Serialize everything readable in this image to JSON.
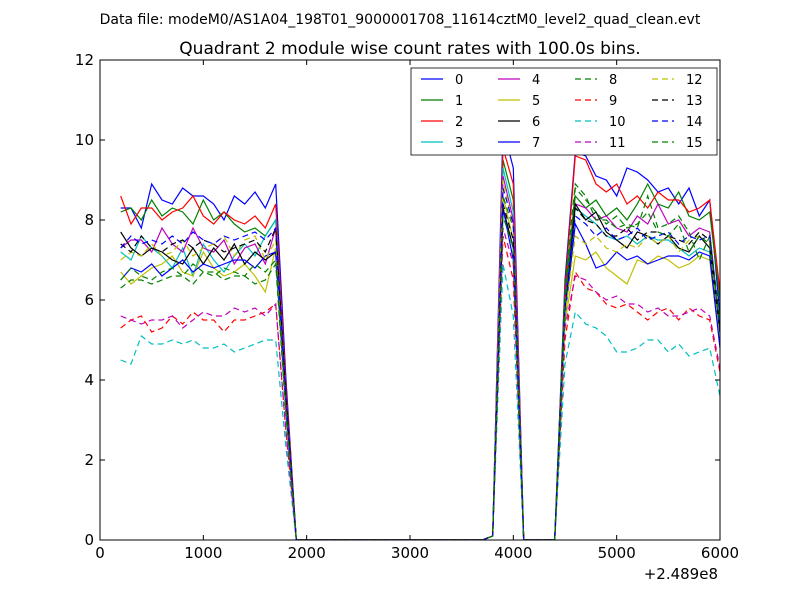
{
  "header": {
    "suptitle": "Data file: modeM0/AS1A04_198T01_9000001708_11614cztM0_level2_quad_clean.evt"
  },
  "chart_data": {
    "type": "line",
    "title": "Quadrant 2 module wise count rates with 100.0s bins.",
    "xlabel": "",
    "ylabel": "",
    "x_offset_label": "+2.489e8",
    "xlim": [
      0,
      6000
    ],
    "ylim": [
      0,
      12
    ],
    "xticks": [
      0,
      1000,
      2000,
      3000,
      4000,
      5000,
      6000
    ],
    "yticks": [
      0,
      2,
      4,
      6,
      8,
      10,
      12
    ],
    "grid": false,
    "legend_position": "top-right",
    "legend_columns": 4,
    "x": [
      200,
      300,
      400,
      500,
      600,
      700,
      800,
      900,
      1000,
      1100,
      1200,
      1300,
      1400,
      1500,
      1600,
      1700,
      1800,
      1900,
      2000,
      2100,
      2200,
      2300,
      2400,
      2500,
      2600,
      2700,
      2800,
      2900,
      3000,
      3100,
      3200,
      3300,
      3400,
      3500,
      3600,
      3700,
      3800,
      3900,
      4000,
      4100,
      4200,
      4300,
      4400,
      4500,
      4600,
      4700,
      4800,
      4900,
      5000,
      5100,
      5200,
      5300,
      5400,
      5500,
      5600,
      5700,
      5800,
      5900,
      6000
    ],
    "series": [
      {
        "name": "0",
        "color": "#0000ff",
        "dash": "solid",
        "values": [
          8.3,
          8.3,
          7.8,
          8.9,
          8.5,
          8.4,
          8.8,
          8.6,
          8.6,
          8.4,
          8.0,
          8.6,
          8.4,
          8.7,
          8.3,
          8.9,
          4.0,
          0,
          0,
          0,
          0,
          0,
          0,
          0,
          0,
          0,
          0,
          0,
          0,
          0,
          0,
          0,
          0,
          0,
          0,
          0,
          0.1,
          10.3,
          9.3,
          0,
          0,
          0,
          0,
          6.5,
          9.7,
          9.6,
          9.1,
          9.0,
          8.6,
          9.3,
          9.2,
          9.0,
          8.7,
          8.8,
          8.4,
          8.8,
          8.1,
          8.5,
          5.6
        ]
      },
      {
        "name": "1",
        "color": "#008000",
        "dash": "solid",
        "values": [
          8.2,
          8.3,
          8.0,
          8.5,
          8.1,
          8.3,
          8.2,
          7.9,
          8.5,
          8.0,
          8.2,
          7.9,
          7.7,
          7.8,
          7.6,
          8.0,
          3.7,
          0,
          0,
          0,
          0,
          0,
          0,
          0,
          0,
          0,
          0,
          0,
          0,
          0,
          0,
          0,
          0,
          0,
          0,
          0,
          0.1,
          9.5,
          8.5,
          0,
          0,
          0,
          0,
          6.2,
          8.6,
          8.3,
          8.5,
          8.1,
          8.3,
          8.0,
          8.4,
          8.9,
          8.4,
          8.3,
          8.7,
          8.1,
          8.0,
          8.2,
          6.0
        ]
      },
      {
        "name": "2",
        "color": "#ff0000",
        "dash": "solid",
        "values": [
          8.6,
          7.9,
          8.3,
          8.3,
          8.0,
          8.2,
          8.3,
          8.6,
          8.1,
          7.9,
          8.2,
          8.0,
          7.9,
          8.1,
          7.8,
          8.4,
          3.8,
          0,
          0,
          0,
          0,
          0,
          0,
          0,
          0,
          0,
          0,
          0,
          0,
          0,
          0,
          0,
          0,
          0,
          0,
          0,
          0.1,
          9.8,
          8.9,
          0,
          0,
          0,
          0,
          6.3,
          9.6,
          9.5,
          8.9,
          8.7,
          8.9,
          8.4,
          8.6,
          8.3,
          8.7,
          8.5,
          8.5,
          8.2,
          8.3,
          8.5,
          6.2
        ]
      },
      {
        "name": "3",
        "color": "#00bfbf",
        "dash": "solid",
        "values": [
          7.2,
          7.0,
          7.6,
          7.3,
          7.1,
          6.8,
          7.3,
          6.6,
          7.4,
          7.0,
          6.7,
          7.1,
          7.4,
          7.1,
          7.6,
          8.0,
          3.5,
          0,
          0,
          0,
          0,
          0,
          0,
          0,
          0,
          0,
          0,
          0,
          0,
          0,
          0,
          0,
          0,
          0,
          0,
          0,
          0.1,
          9.3,
          8.2,
          0,
          0,
          0,
          0,
          5.8,
          8.3,
          8.1,
          7.9,
          7.6,
          7.5,
          7.6,
          7.4,
          7.6,
          7.5,
          7.5,
          7.3,
          7.1,
          7.3,
          7.2,
          5.1
        ]
      },
      {
        "name": "4",
        "color": "#bf00bf",
        "dash": "solid",
        "values": [
          7.3,
          7.5,
          7.5,
          7.2,
          7.8,
          7.4,
          7.2,
          7.8,
          7.3,
          7.2,
          7.5,
          6.9,
          7.3,
          7.4,
          6.9,
          7.8,
          3.5,
          0,
          0,
          0,
          0,
          0,
          0,
          0,
          0,
          0,
          0,
          0,
          0,
          0,
          0,
          0,
          0,
          0,
          0,
          0,
          0.1,
          9.1,
          8.0,
          0,
          0,
          0,
          0,
          6.0,
          8.4,
          8.3,
          8.0,
          8.1,
          7.8,
          7.7,
          8.1,
          7.9,
          8.4,
          7.9,
          8.0,
          7.6,
          7.8,
          7.7,
          5.3
        ]
      },
      {
        "name": "5",
        "color": "#bfbf00",
        "dash": "solid",
        "values": [
          6.7,
          6.4,
          6.6,
          6.8,
          6.9,
          7.1,
          6.7,
          6.6,
          7.2,
          6.8,
          6.6,
          6.7,
          6.9,
          6.6,
          6.2,
          7.3,
          3.3,
          0,
          0,
          0,
          0,
          0,
          0,
          0,
          0,
          0,
          0,
          0,
          0,
          0,
          0,
          0,
          0,
          0,
          0,
          0,
          0.1,
          8.6,
          7.5,
          0,
          0,
          0,
          0,
          5.4,
          7.1,
          7.0,
          7.2,
          6.8,
          6.6,
          6.4,
          7.0,
          6.9,
          7.1,
          7.0,
          6.8,
          6.9,
          7.1,
          7.0,
          4.9
        ]
      },
      {
        "name": "6",
        "color": "#000000",
        "dash": "solid",
        "values": [
          7.7,
          7.3,
          7.1,
          7.3,
          7.2,
          7.0,
          6.9,
          7.3,
          6.9,
          7.3,
          7.0,
          7.4,
          6.9,
          7.2,
          7.0,
          7.2,
          3.3,
          0,
          0,
          0,
          0,
          0,
          0,
          0,
          0,
          0,
          0,
          0,
          0,
          0,
          0,
          0,
          0,
          0,
          0,
          0,
          0.1,
          8.3,
          7.3,
          0,
          0,
          0,
          0,
          5.7,
          8.4,
          8.0,
          8.2,
          7.7,
          7.5,
          7.3,
          7.7,
          7.6,
          7.4,
          7.6,
          7.3,
          7.2,
          7.6,
          7.3,
          5.2
        ]
      },
      {
        "name": "7",
        "color": "#0000ff",
        "dash": "solid",
        "values": [
          6.5,
          6.8,
          6.7,
          6.9,
          6.6,
          6.8,
          7.0,
          6.7,
          6.9,
          6.8,
          6.9,
          7.0,
          7.0,
          6.8,
          7.1,
          7.2,
          3.3,
          0,
          0,
          0,
          0,
          0,
          0,
          0,
          0,
          0,
          0,
          0,
          0,
          0,
          0,
          0,
          0,
          0,
          0,
          0,
          0.1,
          8.3,
          7.0,
          0,
          0,
          0,
          0,
          5.6,
          7.9,
          7.4,
          6.8,
          6.9,
          7.2,
          7.0,
          7.1,
          6.9,
          7.0,
          7.1,
          7.1,
          7.0,
          7.2,
          7.1,
          4.8
        ]
      },
      {
        "name": "8",
        "color": "#008000",
        "dash": "dashed",
        "values": [
          6.3,
          6.5,
          6.5,
          6.4,
          6.5,
          6.6,
          6.6,
          6.4,
          6.7,
          6.7,
          6.5,
          6.6,
          6.6,
          6.4,
          6.5,
          6.9,
          3.1,
          0,
          0,
          0,
          0,
          0,
          0,
          0,
          0,
          0,
          0,
          0,
          0,
          0,
          0,
          0,
          0,
          0,
          0,
          0,
          0.1,
          8.6,
          7.8,
          0,
          0,
          0,
          0,
          6.4,
          8.9,
          8.6,
          8.0,
          8.0,
          7.8,
          7.9,
          7.8,
          8.6,
          7.8,
          7.9,
          8.1,
          7.7,
          7.0,
          7.6,
          5.5
        ]
      },
      {
        "name": "9",
        "color": "#ff0000",
        "dash": "dashed",
        "values": [
          5.3,
          5.5,
          5.6,
          5.2,
          5.3,
          5.6,
          5.4,
          5.7,
          5.5,
          5.5,
          5.2,
          5.5,
          5.5,
          5.6,
          5.7,
          5.9,
          2.7,
          0,
          0,
          0,
          0,
          0,
          0,
          0,
          0,
          0,
          0,
          0,
          0,
          0,
          0,
          0,
          0,
          0,
          0,
          0,
          0.1,
          7.6,
          6.5,
          0,
          0,
          0,
          0,
          5.0,
          6.7,
          6.3,
          6.2,
          5.9,
          5.8,
          5.9,
          5.7,
          5.5,
          5.7,
          5.8,
          5.5,
          5.8,
          5.6,
          5.5,
          4.2
        ]
      },
      {
        "name": "10",
        "color": "#00bfbf",
        "dash": "dashed",
        "values": [
          4.5,
          4.4,
          5.1,
          4.9,
          4.9,
          5.0,
          4.9,
          5.0,
          4.8,
          4.8,
          4.9,
          4.7,
          4.8,
          4.9,
          5.0,
          5.0,
          2.3,
          0,
          0,
          0,
          0,
          0,
          0,
          0,
          0,
          0,
          0,
          0,
          0,
          0,
          0,
          0,
          0,
          0,
          0,
          0,
          0.1,
          6.9,
          5.6,
          0,
          0,
          0,
          0,
          4.4,
          5.7,
          5.4,
          5.3,
          5.1,
          4.7,
          4.7,
          4.8,
          5.0,
          5.0,
          4.7,
          4.9,
          4.6,
          4.7,
          4.8,
          3.6
        ]
      },
      {
        "name": "11",
        "color": "#bf00bf",
        "dash": "dashed",
        "values": [
          5.6,
          5.5,
          5.4,
          5.5,
          5.5,
          5.6,
          5.3,
          5.5,
          5.7,
          5.6,
          5.6,
          5.8,
          5.7,
          5.8,
          5.6,
          5.9,
          2.7,
          0,
          0,
          0,
          0,
          0,
          0,
          0,
          0,
          0,
          0,
          0,
          0,
          0,
          0,
          0,
          0,
          0,
          0,
          0,
          0.1,
          7.8,
          6.9,
          0,
          0,
          0,
          0,
          5.3,
          6.6,
          6.5,
          6.2,
          6.0,
          6.1,
          5.9,
          5.9,
          5.7,
          5.8,
          5.6,
          5.6,
          5.7,
          5.8,
          5.6,
          4.3
        ]
      },
      {
        "name": "12",
        "color": "#bfbf00",
        "dash": "dashed",
        "values": [
          7.0,
          7.2,
          7.1,
          7.4,
          7.1,
          7.2,
          7.5,
          7.1,
          7.3,
          7.4,
          7.6,
          7.1,
          7.5,
          7.6,
          7.0,
          7.5,
          3.5,
          0,
          0,
          0,
          0,
          0,
          0,
          0,
          0,
          0,
          0,
          0,
          0,
          0,
          0,
          0,
          0,
          0,
          0,
          0,
          0.1,
          9.0,
          7.8,
          0,
          0,
          0,
          0,
          5.6,
          7.6,
          7.4,
          7.6,
          7.3,
          7.2,
          7.4,
          7.3,
          7.6,
          7.4,
          7.6,
          7.2,
          7.5,
          7.6,
          7.4,
          5.1
        ]
      },
      {
        "name": "13",
        "color": "#000000",
        "dash": "dashed",
        "values": [
          7.4,
          7.2,
          7.6,
          7.3,
          7.2,
          7.4,
          7.5,
          7.3,
          7.5,
          7.4,
          7.2,
          7.3,
          7.4,
          7.5,
          7.2,
          7.8,
          3.6,
          0,
          0,
          0,
          0,
          0,
          0,
          0,
          0,
          0,
          0,
          0,
          0,
          0,
          0,
          0,
          0,
          0,
          0,
          0,
          0.1,
          8.4,
          7.5,
          0,
          0,
          0,
          0,
          5.8,
          8.3,
          8.0,
          7.9,
          7.6,
          7.6,
          7.8,
          7.5,
          7.7,
          7.7,
          7.6,
          7.5,
          7.4,
          7.7,
          7.5,
          5.3
        ]
      },
      {
        "name": "14",
        "color": "#0000ff",
        "dash": "dashed",
        "values": [
          7.3,
          7.6,
          7.4,
          7.5,
          7.4,
          7.6,
          7.4,
          7.7,
          7.5,
          7.4,
          7.6,
          7.5,
          7.6,
          7.7,
          7.5,
          7.8,
          3.5,
          0,
          0,
          0,
          0,
          0,
          0,
          0,
          0,
          0,
          0,
          0,
          0,
          0,
          0,
          0,
          0,
          0,
          0,
          0,
          0.1,
          8.8,
          7.9,
          0,
          0,
          0,
          0,
          5.9,
          8.1,
          7.9,
          7.6,
          7.8,
          7.5,
          7.6,
          7.8,
          7.5,
          7.6,
          7.7,
          7.4,
          7.6,
          7.5,
          7.6,
          5.2
        ]
      },
      {
        "name": "15",
        "color": "#008000",
        "dash": "dashed",
        "values": [
          6.5,
          6.8,
          6.6,
          6.5,
          6.7,
          6.8,
          6.6,
          6.9,
          6.7,
          6.6,
          6.8,
          6.7,
          6.6,
          6.9,
          6.7,
          7.0,
          3.2,
          0,
          0,
          0,
          0,
          0,
          0,
          0,
          0,
          0,
          0,
          0,
          0,
          0,
          0,
          0,
          0,
          0,
          0,
          0,
          0.1,
          8.1,
          7.3,
          0,
          0,
          0,
          0,
          5.8,
          8.8,
          8.5,
          8.2,
          7.9,
          8.1,
          7.8,
          7.9,
          8.2,
          7.7,
          7.6,
          7.9,
          7.2,
          7.6,
          7.4,
          5.4
        ]
      }
    ]
  }
}
